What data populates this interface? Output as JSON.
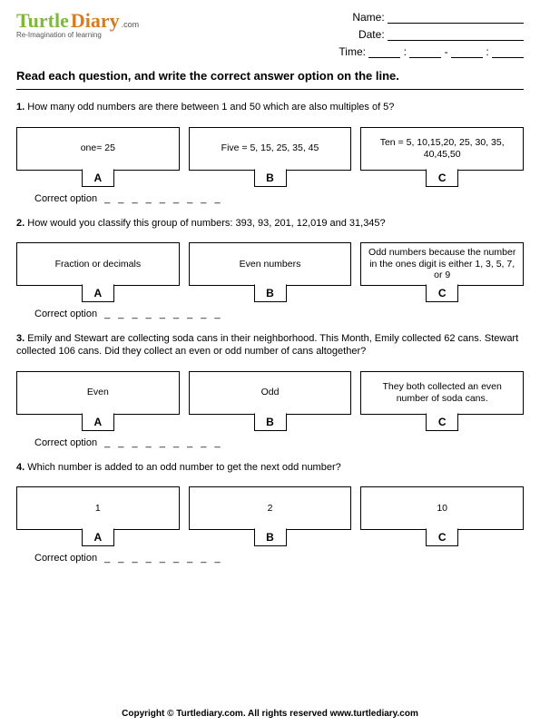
{
  "logo": {
    "t": "Turtle",
    "d": "Diary",
    "com": ".com",
    "tag": "Re-Imagination of learning"
  },
  "meta": {
    "name": "Name:",
    "date": "Date:",
    "time": "Time:"
  },
  "instr": "Read each question, and write the correct answer option on the line.",
  "correct_label": "Correct option",
  "dashes": "_ _ _ _ _ _ _ _ _",
  "q": [
    {
      "n": "1.",
      "text": "How many odd numbers are there between 1 and 50 which are also multiples of 5?",
      "a": "one=     25",
      "b": "Five = 5, 15, 25, 35, 45",
      "c": "Ten = 5, 10,15,20, 25, 30, 35, 40,45,50"
    },
    {
      "n": "2.",
      "text": "How would you classify this group of numbers: 393, 93, 201, 12,019 and 31,345?",
      "a": "Fraction or decimals",
      "b": "Even numbers",
      "c": "Odd numbers because the number in the ones digit is either 1, 3, 5, 7, or 9"
    },
    {
      "n": "3.",
      "text": "Emily and Stewart are collecting soda cans in their neighborhood.  This Month, Emily collected 62 cans.  Stewart collected 106 cans.  Did they collect an even or odd number of  cans altogether?",
      "a": "Even",
      "b": "Odd",
      "c": "They both collected an even number of soda cans."
    },
    {
      "n": "4.",
      "text": "Which number is added to an odd number to get the next odd number?",
      "a": "1",
      "b": "2",
      "c": "10"
    }
  ],
  "labels": {
    "a": "A",
    "b": "B",
    "c": "C"
  },
  "footer": "Copyright © Turtlediary.com. All rights reserved    www.turtlediary.com"
}
